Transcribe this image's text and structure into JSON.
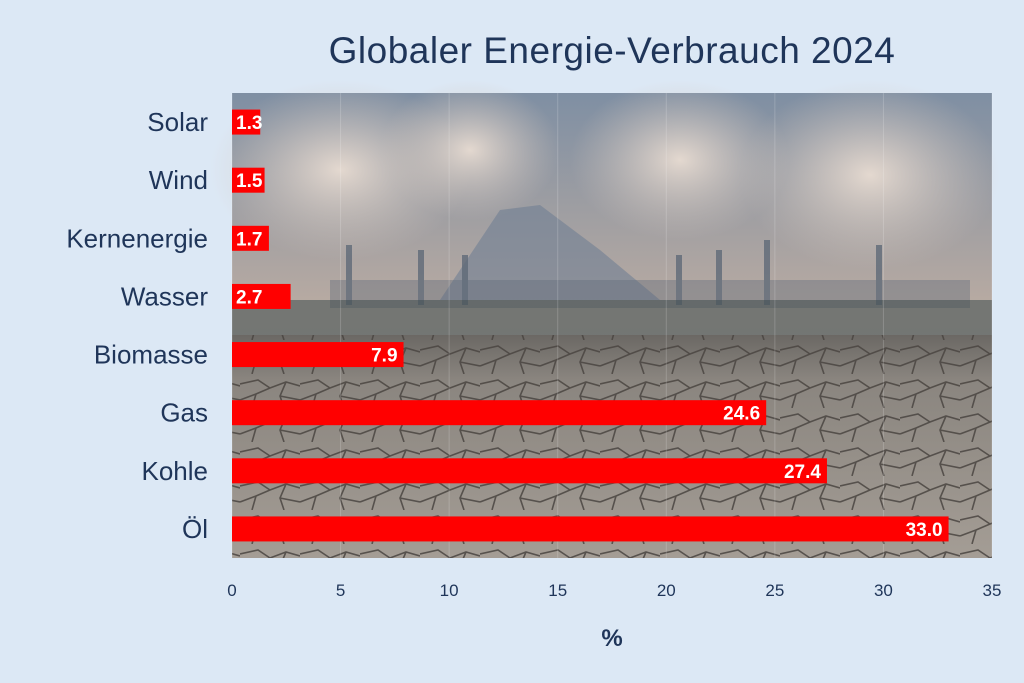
{
  "chart_data": {
    "type": "bar",
    "orientation": "horizontal",
    "title": "Globaler Energie-Verbrauch 2024",
    "xlabel": "%",
    "ylabel": "",
    "xlim": [
      0,
      35
    ],
    "xticks": [
      0,
      5,
      10,
      15,
      20,
      25,
      30,
      35
    ],
    "categories": [
      "Solar",
      "Wind",
      "Kernenergie",
      "Wasser",
      "Biomasse",
      "Gas",
      "Kohle",
      "Öl"
    ],
    "values": [
      1.3,
      1.5,
      1.7,
      2.7,
      7.9,
      24.6,
      27.4,
      33.0
    ],
    "value_labels": [
      "1.3",
      "1.5",
      "1.7",
      "2.7",
      "7.9",
      "24.6",
      "27.4",
      "33.0"
    ],
    "bar_color": "#ff0000",
    "grid": true,
    "background": "photo of industrial smokestacks over cracked dry earth"
  }
}
